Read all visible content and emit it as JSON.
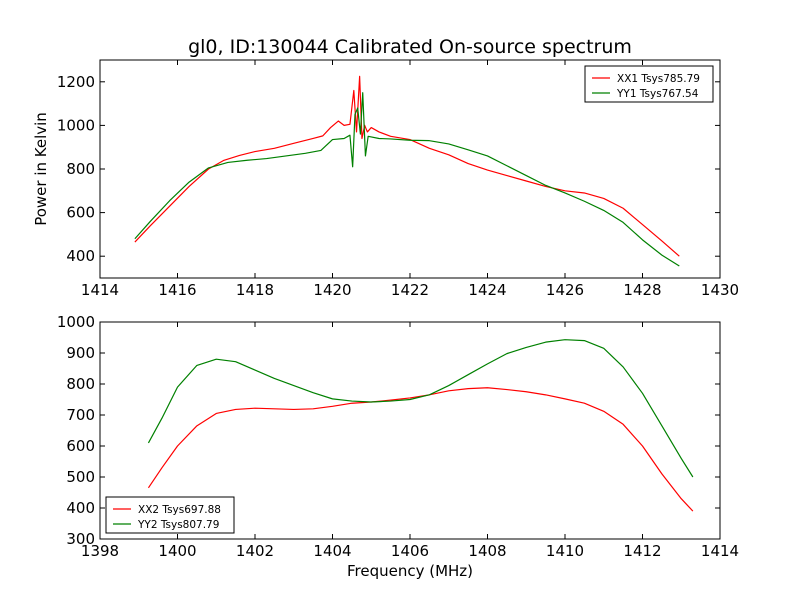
{
  "chart_data": [
    {
      "type": "line",
      "title": "gl0, ID:130044 Calibrated On-source spectrum",
      "xlabel": "",
      "ylabel": "Power in Kelvin",
      "xlim": [
        1414,
        1430
      ],
      "ylim": [
        300,
        1300
      ],
      "xticks": [
        1414,
        1416,
        1418,
        1420,
        1422,
        1424,
        1426,
        1428,
        1430
      ],
      "yticks": [
        400,
        600,
        800,
        1000,
        1200
      ],
      "grid": false,
      "legend_position": "top-right",
      "series": [
        {
          "name": "XX1 Tsys785.79",
          "color": "#ff0000",
          "points": [
            [
              1414.9,
              465
            ],
            [
              1415.3,
              540
            ],
            [
              1415.8,
              630
            ],
            [
              1416.3,
              720
            ],
            [
              1416.8,
              800
            ],
            [
              1417.2,
              840
            ],
            [
              1417.6,
              862
            ],
            [
              1418.0,
              880
            ],
            [
              1418.5,
              895
            ],
            [
              1419.0,
              918
            ],
            [
              1419.5,
              940
            ],
            [
              1419.75,
              952
            ],
            [
              1419.95,
              990
            ],
            [
              1420.15,
              1020
            ],
            [
              1420.3,
              1000
            ],
            [
              1420.45,
              1005
            ],
            [
              1420.55,
              1160
            ],
            [
              1420.62,
              970
            ],
            [
              1420.7,
              1225
            ],
            [
              1420.76,
              940
            ],
            [
              1420.83,
              1000
            ],
            [
              1420.9,
              970
            ],
            [
              1421.0,
              990
            ],
            [
              1421.2,
              970
            ],
            [
              1421.5,
              950
            ],
            [
              1422.0,
              935
            ],
            [
              1422.5,
              895
            ],
            [
              1423.0,
              865
            ],
            [
              1423.5,
              825
            ],
            [
              1424.0,
              795
            ],
            [
              1424.5,
              770
            ],
            [
              1425.0,
              745
            ],
            [
              1425.5,
              720
            ],
            [
              1426.0,
              700
            ],
            [
              1426.5,
              690
            ],
            [
              1427.0,
              665
            ],
            [
              1427.5,
              620
            ],
            [
              1428.0,
              545
            ],
            [
              1428.5,
              470
            ],
            [
              1428.95,
              400
            ]
          ]
        },
        {
          "name": "YY1 Tsys767.54",
          "color": "#008000",
          "points": [
            [
              1414.9,
              480
            ],
            [
              1415.3,
              560
            ],
            [
              1415.8,
              655
            ],
            [
              1416.3,
              740
            ],
            [
              1416.8,
              805
            ],
            [
              1417.3,
              830
            ],
            [
              1417.8,
              840
            ],
            [
              1418.3,
              848
            ],
            [
              1418.8,
              860
            ],
            [
              1419.3,
              872
            ],
            [
              1419.7,
              885
            ],
            [
              1420.0,
              935
            ],
            [
              1420.3,
              940
            ],
            [
              1420.45,
              955
            ],
            [
              1420.52,
              810
            ],
            [
              1420.58,
              1050
            ],
            [
              1420.65,
              1080
            ],
            [
              1420.72,
              960
            ],
            [
              1420.78,
              1150
            ],
            [
              1420.85,
              860
            ],
            [
              1420.92,
              950
            ],
            [
              1421.2,
              940
            ],
            [
              1421.5,
              938
            ],
            [
              1422.0,
              932
            ],
            [
              1422.5,
              930
            ],
            [
              1423.0,
              915
            ],
            [
              1423.5,
              888
            ],
            [
              1424.0,
              860
            ],
            [
              1424.5,
              815
            ],
            [
              1425.0,
              770
            ],
            [
              1425.5,
              725
            ],
            [
              1426.0,
              690
            ],
            [
              1426.5,
              652
            ],
            [
              1427.0,
              610
            ],
            [
              1427.5,
              555
            ],
            [
              1428.0,
              475
            ],
            [
              1428.5,
              405
            ],
            [
              1428.95,
              355
            ]
          ]
        }
      ]
    },
    {
      "type": "line",
      "title": "",
      "xlabel": "Frequency (MHz)",
      "ylabel": "",
      "xlim": [
        1398,
        1414
      ],
      "ylim": [
        300,
        1000
      ],
      "xticks": [
        1398,
        1400,
        1402,
        1404,
        1406,
        1408,
        1410,
        1412,
        1414
      ],
      "yticks": [
        300,
        400,
        500,
        600,
        700,
        800,
        900,
        1000
      ],
      "grid": false,
      "legend_position": "bottom-left",
      "series": [
        {
          "name": "XX2 Tsys697.88",
          "color": "#ff0000",
          "points": [
            [
              1399.25,
              465
            ],
            [
              1399.6,
              530
            ],
            [
              1400.0,
              600
            ],
            [
              1400.5,
              665
            ],
            [
              1401.0,
              705
            ],
            [
              1401.5,
              718
            ],
            [
              1402.0,
              722
            ],
            [
              1402.5,
              720
            ],
            [
              1403.0,
              718
            ],
            [
              1403.5,
              720
            ],
            [
              1404.0,
              728
            ],
            [
              1404.5,
              738
            ],
            [
              1405.0,
              742
            ],
            [
              1405.5,
              748
            ],
            [
              1406.0,
              755
            ],
            [
              1406.5,
              765
            ],
            [
              1407.0,
              778
            ],
            [
              1407.5,
              785
            ],
            [
              1408.0,
              788
            ],
            [
              1408.5,
              782
            ],
            [
              1409.0,
              775
            ],
            [
              1409.5,
              765
            ],
            [
              1410.0,
              752
            ],
            [
              1410.5,
              738
            ],
            [
              1411.0,
              712
            ],
            [
              1411.5,
              670
            ],
            [
              1412.0,
              600
            ],
            [
              1412.5,
              510
            ],
            [
              1413.0,
              430
            ],
            [
              1413.3,
              390
            ]
          ]
        },
        {
          "name": "YY2 Tsys807.79",
          "color": "#008000",
          "points": [
            [
              1399.25,
              610
            ],
            [
              1399.6,
              690
            ],
            [
              1400.0,
              790
            ],
            [
              1400.5,
              860
            ],
            [
              1401.0,
              880
            ],
            [
              1401.5,
              872
            ],
            [
              1402.0,
              845
            ],
            [
              1402.5,
              818
            ],
            [
              1403.0,
              795
            ],
            [
              1403.5,
              772
            ],
            [
              1404.0,
              752
            ],
            [
              1404.5,
              745
            ],
            [
              1405.0,
              742
            ],
            [
              1405.5,
              745
            ],
            [
              1406.0,
              750
            ],
            [
              1406.5,
              765
            ],
            [
              1407.0,
              795
            ],
            [
              1407.5,
              830
            ],
            [
              1408.0,
              865
            ],
            [
              1408.5,
              898
            ],
            [
              1409.0,
              918
            ],
            [
              1409.5,
              935
            ],
            [
              1410.0,
              943
            ],
            [
              1410.5,
              940
            ],
            [
              1411.0,
              915
            ],
            [
              1411.5,
              855
            ],
            [
              1412.0,
              770
            ],
            [
              1412.5,
              665
            ],
            [
              1413.0,
              560
            ],
            [
              1413.3,
              500
            ]
          ]
        }
      ]
    }
  ]
}
